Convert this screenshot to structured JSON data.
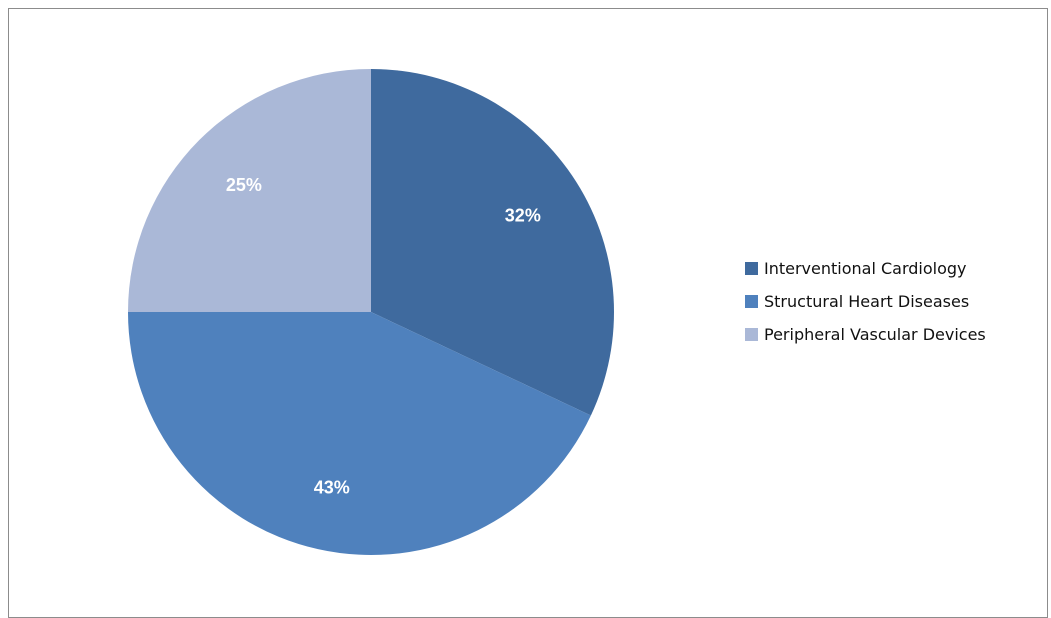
{
  "chart_data": {
    "type": "pie",
    "title": "",
    "series": [
      {
        "values": [
          32,
          43,
          25
        ]
      }
    ],
    "categories": [
      "Interventional Cardiology",
      "Structural Heart Diseases",
      "Peripheral Vascular Devices"
    ],
    "data_labels": [
      "32%",
      "43%",
      "25%"
    ],
    "colors": [
      "#3F6A9E",
      "#4F81BD",
      "#AAB8D7"
    ],
    "legend_position": "right",
    "start_angle": "12 o'clock",
    "direction": "clockwise"
  }
}
